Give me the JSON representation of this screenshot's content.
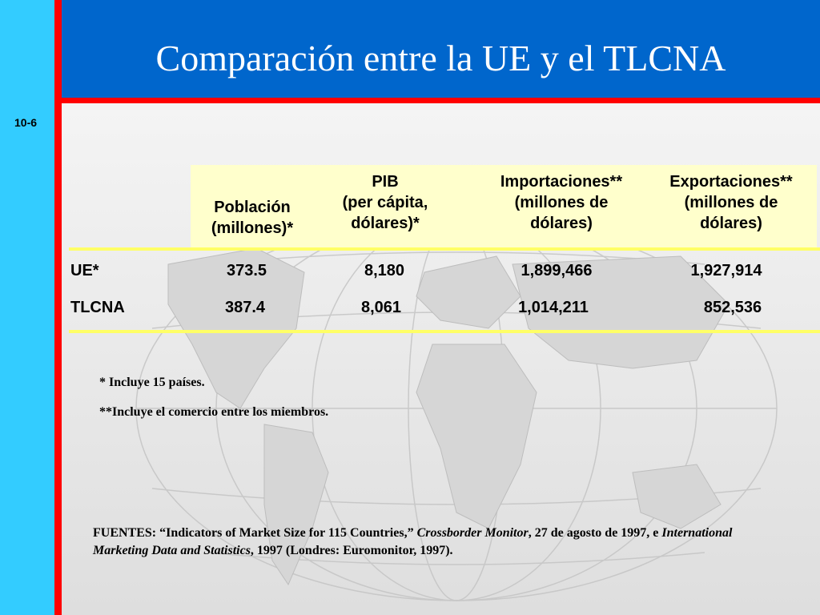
{
  "slide": {
    "title": "Comparación entre la UE y el TLCNA",
    "number": "10-6"
  },
  "table": {
    "headers": [
      {
        "text": "Población\n(millones)*"
      },
      {
        "text": "PIB\n(per cápita,\ndólares)*"
      },
      {
        "text": "Importaciones**\n(millones de\ndólares)"
      },
      {
        "text": "Exportaciones**\n(millones de\ndólares)"
      }
    ],
    "rows": [
      {
        "label": "UE*",
        "poblacion": "373.5",
        "pib": "8,180",
        "importaciones": "1,899,466",
        "exportaciones": "1,927,914"
      },
      {
        "label": "TLCNA",
        "poblacion": "387.4",
        "pib": "8,061",
        "importaciones": "1,014,211",
        "exportaciones": "852,536"
      }
    ]
  },
  "notes": [
    "* Incluye 15 países.",
    "**Incluye el comercio entre los miembros."
  ],
  "sources": {
    "prefix": "FUENTES: “Indicators of Market Size for 115 Countries,” ",
    "pub1": "Crossborder Monitor",
    "mid": ", 27 de agosto de 1997, e ",
    "pub2": "International Marketing Data and Statistics",
    "suffix": ", 1997 (Londres: Euromonitor, 1997)."
  },
  "colors": {
    "title_bar": "#0066cc",
    "left_bar": "#33ccff",
    "accent_red": "#ff0000",
    "header_fill": "#ffffcc",
    "rule": "#ffff66"
  }
}
